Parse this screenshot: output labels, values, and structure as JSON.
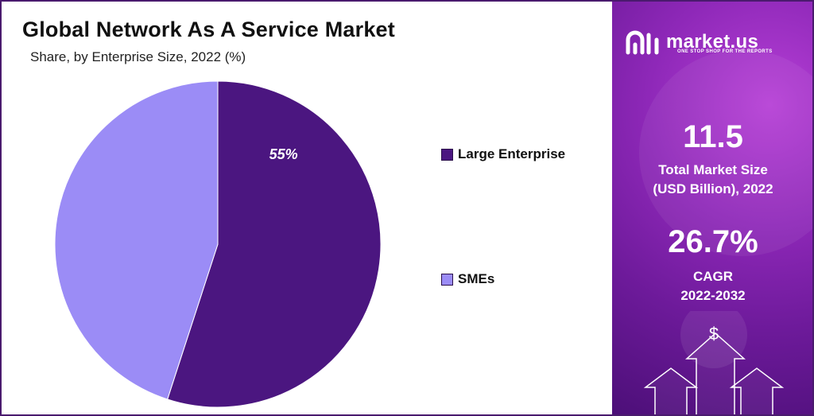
{
  "chart_data": {
    "type": "pie",
    "title": "Global Network As A Service Market",
    "subtitle": "Share, by Enterprise Size, 2022 (%)",
    "slices": [
      {
        "label": "Large Enterprise",
        "value": 55,
        "data_label": "55%",
        "color": "#4b1680"
      },
      {
        "label": "SMEs",
        "value": 45,
        "data_label": "",
        "color": "#9b8cf6"
      }
    ],
    "legend_position": "right"
  },
  "brand": {
    "name": "market.us",
    "tagline": "ONE STOP SHOP FOR THE REPORTS",
    "logo_icon": "market-us-logo"
  },
  "stats": {
    "market_size_value": "11.5",
    "market_size_label_1": "Total Market Size",
    "market_size_label_2": "(USD Billion), 2022",
    "cagr_value": "26.7%",
    "cagr_label_1": "CAGR",
    "cagr_label_2": "2022-2032"
  },
  "decor": {
    "dollar_symbol": "$",
    "icon": "dollar-growth-arrows-icon"
  },
  "colors": {
    "panel_dark": "#4c0f78",
    "panel_light": "#b63fd6",
    "border": "#4a1a6e"
  }
}
